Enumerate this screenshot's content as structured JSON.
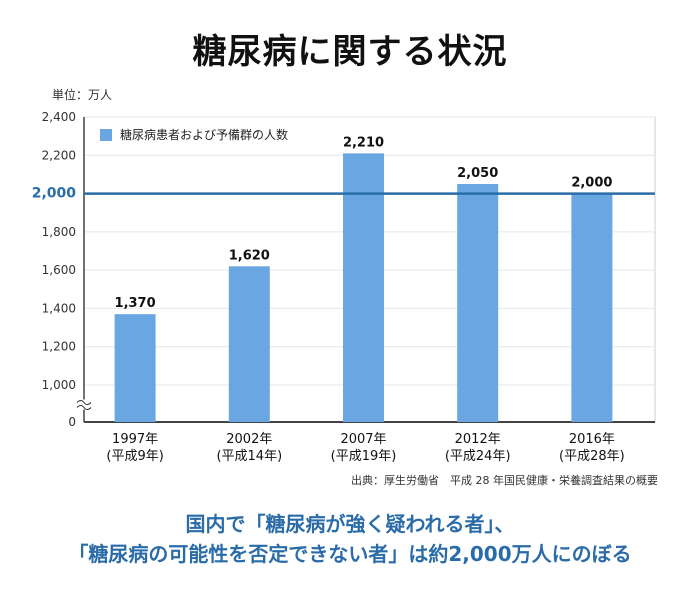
{
  "title": "糖尿病に関する状況",
  "unit_label": "単位：万人",
  "source": "出典：厚生労働省　平成 28 年国民健康・栄養調査結果の概要",
  "footer": {
    "line1": "国内で「糖尿病が強く疑われる者」、",
    "line2": "「糖尿病の可能性を否定できない者」は約2,000万人にのぼる"
  },
  "colors": {
    "bar": "#6aa6e2",
    "reference_line": "#2a6ca8",
    "axis": "#444444",
    "grid": "#e6e6e6"
  },
  "chart_data": {
    "type": "bar",
    "categories": [
      "1997年",
      "2002年",
      "2007年",
      "2012年",
      "2016年"
    ],
    "category_sublabels": [
      "(平成9年)",
      "(平成14年)",
      "(平成19年)",
      "(平成24年)",
      "(平成28年)"
    ],
    "series": [
      {
        "name": "糖尿病患者および予備群の人数",
        "values": [
          1370,
          1620,
          2210,
          2050,
          2000
        ]
      }
    ],
    "value_labels": [
      "1,370",
      "1,620",
      "2,210",
      "2,050",
      "2,000"
    ],
    "yticks": [
      0,
      1000,
      1200,
      1400,
      1600,
      1800,
      2000,
      2200,
      2400
    ],
    "ytick_labels": [
      "0",
      "1,000",
      "1,200",
      "1,400",
      "1,600",
      "1,800",
      "2,000",
      "2,200",
      "2,400"
    ],
    "axis_break": [
      0,
      900
    ],
    "ylim": [
      900,
      2400
    ],
    "reference_line": {
      "value": 2000,
      "label": "2,000"
    },
    "grid": true,
    "legend_position": "top-left"
  }
}
